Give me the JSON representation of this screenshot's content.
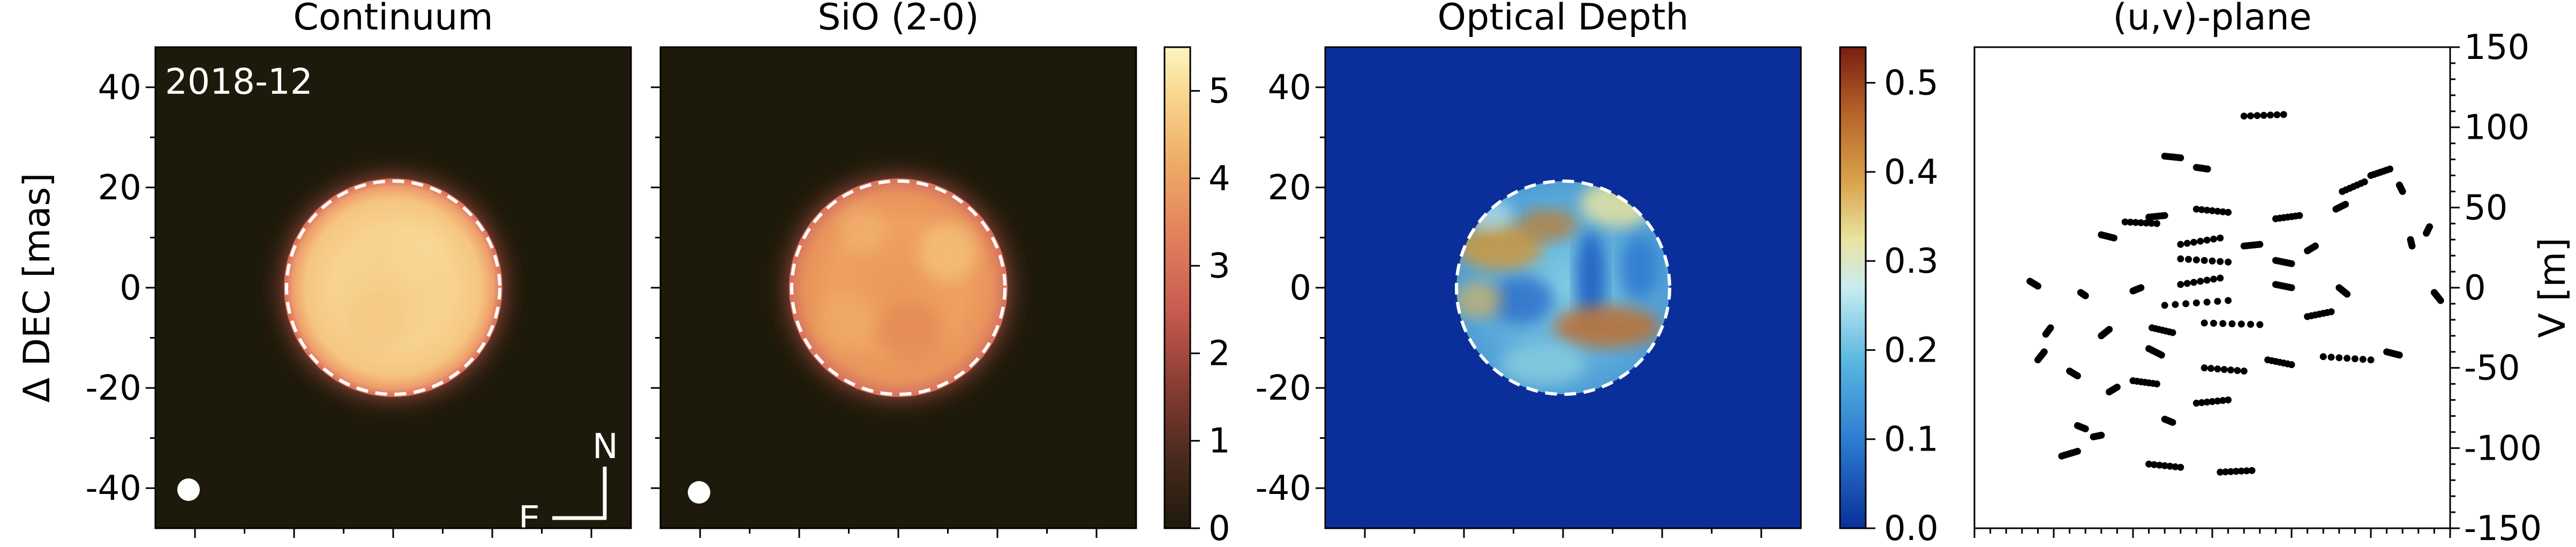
{
  "chart_data": [
    {
      "type": "heatmap",
      "title": "Continuum",
      "date_label": "2018-12",
      "ylabel": "Δ DEC [mas]",
      "ylim": [
        -48,
        48
      ],
      "xlim": [
        -48,
        48
      ],
      "yticks": [
        40,
        20,
        0,
        -20,
        -40
      ],
      "disk": {
        "center": [
          0,
          0
        ],
        "radius": 21
      },
      "beam": {
        "x": -39,
        "y": -42,
        "radius": 2.2
      },
      "compass": {
        "north": "N",
        "east": "E"
      },
      "colors": {
        "background": "#1e1a0b",
        "disk": "#f7d28c",
        "limb": "#e27a5f"
      }
    },
    {
      "type": "heatmap",
      "title": "SiO (2-0)",
      "xlim": [
        -48,
        48
      ],
      "ylim": [
        -48,
        48
      ],
      "disk": {
        "center": [
          0,
          0
        ],
        "radius": 21
      },
      "beam": {
        "x": -39,
        "y": -42,
        "radius": 2.2
      },
      "colorbar": {
        "ticks": [
          5,
          4,
          3,
          2,
          1,
          0
        ],
        "range": [
          0,
          5.5
        ]
      },
      "colors": {
        "background": "#1e1a0b",
        "disk": "#e99a5c",
        "limb": "#e27a5f"
      }
    },
    {
      "type": "heatmap",
      "title": "Optical Depth",
      "xlim": [
        -48,
        48
      ],
      "ylim": [
        -48,
        48
      ],
      "yticks": [
        40,
        20,
        0,
        -20,
        -40
      ],
      "disk": {
        "center": [
          0,
          0
        ],
        "radius": 21
      },
      "colorbar": {
        "ticks": [
          0.5,
          0.4,
          0.3,
          0.2,
          0.1,
          0.0
        ],
        "labels": [
          "0.5",
          "0.4",
          "0.3",
          "0.2",
          "0.1",
          "0.0"
        ],
        "range": [
          0,
          0.54
        ]
      },
      "colors": {
        "background": "#0b2f9a"
      }
    },
    {
      "type": "scatter",
      "title": "(u,v)-plane",
      "ylabel": "V [m]",
      "ylim": [
        -150,
        150
      ],
      "xlim": [
        -150,
        150
      ],
      "yticks": [
        150,
        100,
        50,
        0,
        -50,
        -100,
        -150
      ],
      "tracks": [
        [
          20,
          107,
          45,
          108
        ],
        [
          -30,
          82,
          -20,
          81
        ],
        [
          -10,
          75,
          -3,
          74
        ],
        [
          100,
          70,
          112,
          74
        ],
        [
          82,
          60,
          96,
          66
        ],
        [
          118,
          64,
          120,
          60
        ],
        [
          -55,
          41,
          -35,
          40
        ],
        [
          -40,
          44,
          -30,
          45
        ],
        [
          -10,
          49,
          10,
          47
        ],
        [
          40,
          43,
          55,
          45
        ],
        [
          78,
          49,
          84,
          52
        ],
        [
          135,
          34,
          137,
          38
        ],
        [
          125,
          30,
          126,
          26
        ],
        [
          -70,
          33,
          -62,
          31
        ],
        [
          -20,
          27,
          5,
          31
        ],
        [
          20,
          26,
          30,
          27
        ],
        [
          60,
          23,
          65,
          26
        ],
        [
          -20,
          18,
          10,
          16
        ],
        [
          40,
          17,
          50,
          15
        ],
        [
          -115,
          4,
          -110,
          1
        ],
        [
          -83,
          -3,
          -80,
          -5
        ],
        [
          -50,
          -2,
          -45,
          0
        ],
        [
          -20,
          2,
          5,
          6
        ],
        [
          40,
          2,
          50,
          0
        ],
        [
          80,
          0,
          85,
          -4
        ],
        [
          140,
          -3,
          144,
          -8
        ],
        [
          -30,
          -11,
          10,
          -8
        ],
        [
          -102,
          -25,
          -105,
          -29
        ],
        [
          -38,
          -25,
          -25,
          -28
        ],
        [
          -5,
          -22,
          30,
          -23
        ],
        [
          60,
          -18,
          75,
          -15
        ],
        [
          -70,
          -30,
          -65,
          -26
        ],
        [
          -40,
          -38,
          -32,
          -42
        ],
        [
          -5,
          -50,
          20,
          -52
        ],
        [
          35,
          -45,
          50,
          -48
        ],
        [
          70,
          -43,
          100,
          -45
        ],
        [
          110,
          -40,
          118,
          -42
        ],
        [
          -90,
          -52,
          -85,
          -55
        ],
        [
          -110,
          -45,
          -106,
          -40
        ],
        [
          -50,
          -58,
          -35,
          -60
        ],
        [
          -65,
          -65,
          -60,
          -62
        ],
        [
          -10,
          -72,
          10,
          -70
        ],
        [
          -30,
          -82,
          -25,
          -84
        ],
        [
          -85,
          -86,
          -80,
          -88
        ],
        [
          -75,
          -93,
          -70,
          -92
        ],
        [
          -95,
          -105,
          -85,
          -102
        ],
        [
          -40,
          -110,
          -20,
          -112
        ],
        [
          5,
          -115,
          25,
          -114
        ]
      ]
    }
  ]
}
